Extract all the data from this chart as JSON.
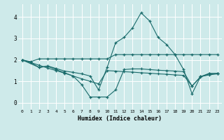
{
  "xlabel": "Humidex (Indice chaleur)",
  "bg_color": "#ceeaea",
  "line_color": "#1a6b6b",
  "grid_color": "#ffffff",
  "xlim": [
    -0.5,
    23.5
  ],
  "ylim": [
    -0.3,
    4.6
  ],
  "yticks": [
    0,
    1,
    2,
    3,
    4
  ],
  "xticks": [
    0,
    1,
    2,
    3,
    4,
    5,
    6,
    7,
    8,
    9,
    10,
    11,
    12,
    13,
    14,
    15,
    16,
    17,
    18,
    19,
    20,
    21,
    22,
    23
  ],
  "lines": [
    {
      "x": [
        0,
        1,
        2,
        3,
        4,
        5,
        6,
        7,
        8,
        9,
        10,
        11,
        12,
        13,
        14,
        15,
        16,
        17,
        18,
        19,
        20,
        21,
        22,
        23
      ],
      "y": [
        2.0,
        1.88,
        1.65,
        1.7,
        1.55,
        1.4,
        1.25,
        0.85,
        0.27,
        0.27,
        0.27,
        0.6,
        1.55,
        1.58,
        1.58,
        1.55,
        1.52,
        1.5,
        1.48,
        1.45,
        0.78,
        1.2,
        1.35,
        1.37
      ]
    },
    {
      "x": [
        0,
        1,
        2,
        3,
        4,
        5,
        6,
        7,
        8,
        9,
        10,
        11,
        12,
        13,
        14,
        15,
        16,
        17,
        18,
        19,
        20,
        21,
        22,
        23
      ],
      "y": [
        2.0,
        1.92,
        2.05,
        2.05,
        2.05,
        2.05,
        2.05,
        2.05,
        2.05,
        2.05,
        2.05,
        2.25,
        2.25,
        2.25,
        2.25,
        2.25,
        2.25,
        2.25,
        2.25,
        2.25,
        2.25,
        2.25,
        2.25,
        2.25
      ]
    },
    {
      "x": [
        0,
        2,
        3,
        4,
        5,
        6,
        7,
        8,
        9,
        10,
        11,
        12,
        13,
        14,
        15,
        16,
        17,
        18,
        19,
        20,
        21,
        22,
        23
      ],
      "y": [
        2.0,
        1.65,
        1.72,
        1.6,
        1.48,
        1.42,
        1.35,
        1.25,
        0.6,
        1.65,
        2.8,
        3.05,
        3.5,
        4.2,
        3.82,
        3.05,
        2.72,
        2.25,
        1.55,
        0.42,
        1.22,
        1.37,
        1.37
      ]
    },
    {
      "x": [
        0,
        1,
        2,
        3,
        4,
        5,
        6,
        7,
        8,
        9,
        10,
        11,
        12,
        13,
        14,
        15,
        16,
        17,
        18,
        19,
        20,
        21,
        22,
        23
      ],
      "y": [
        2.0,
        1.88,
        1.75,
        1.62,
        1.5,
        1.38,
        1.25,
        1.12,
        1.0,
        0.88,
        1.5,
        1.48,
        1.45,
        1.43,
        1.4,
        1.38,
        1.35,
        1.33,
        1.3,
        1.28,
        0.78,
        1.22,
        1.3,
        1.35
      ]
    }
  ]
}
